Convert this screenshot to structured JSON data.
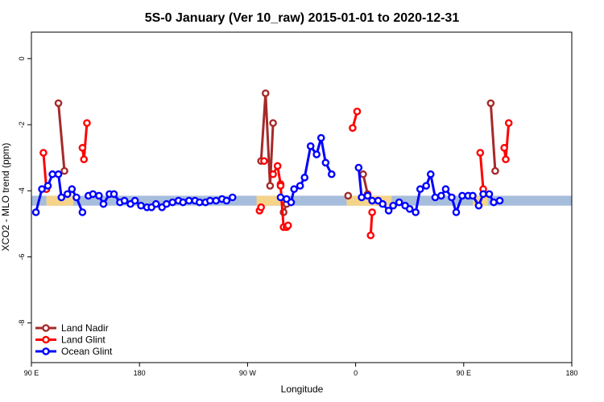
{
  "chart_data": {
    "type": "line",
    "title": "5S-0 January (Ver 10_raw)   2015-01-01 to 2020-12-31",
    "xlabel": "Longitude",
    "ylabel": "XCO2 - MLO trend (ppm)",
    "xlim": [
      90,
      450
    ],
    "ylim": [
      -9.2,
      0.8
    ],
    "x_ticks": [
      {
        "value": 90,
        "label": "90 E"
      },
      {
        "value": 162,
        "label": "180"
      },
      {
        "value": 234,
        "label": "90 W"
      },
      {
        "value": 306,
        "label": "0"
      },
      {
        "value": 378,
        "label": "90 E"
      },
      {
        "value": 450,
        "label": "180"
      }
    ],
    "y_ticks": [
      {
        "value": 0,
        "label": "0"
      },
      {
        "value": -2,
        "label": "-2"
      },
      {
        "value": -4,
        "label": "-4"
      },
      {
        "value": -6,
        "label": "-6"
      },
      {
        "value": -8,
        "label": "-8"
      }
    ],
    "band": {
      "ymin": -4.45,
      "ymax": -4.15,
      "color": "#a7bddc",
      "highlight_color": "#f5d48a",
      "highlight_ranges": [
        [
          100,
          118
        ],
        [
          240,
          262
        ],
        [
          300,
          330
        ],
        [
          384,
          394
        ]
      ]
    },
    "legend_position": "bottom-left",
    "series": [
      {
        "name": "Land Nadir",
        "color": "#a52a2a",
        "segments": [
          [
            [
              108,
              -1.35
            ],
            [
              112,
              -3.4
            ]
          ],
          [
            [
              243,
              -3.1
            ],
            [
              246,
              -1.05
            ],
            [
              249,
              -3.85
            ],
            [
              251,
              -1.95
            ]
          ],
          [
            [
              258,
              -4.65
            ],
            [
              260,
              -4.4
            ]
          ],
          [
            [
              301,
              -4.15
            ]
          ],
          [
            [
              311,
              -3.5
            ],
            [
              314,
              -4.1
            ]
          ],
          [
            [
              396,
              -1.35
            ],
            [
              399,
              -3.4
            ]
          ]
        ]
      },
      {
        "name": "Land Glint",
        "color": "#ff0000",
        "segments": [
          [
            [
              98,
              -2.85
            ],
            [
              100,
              -3.95
            ]
          ],
          [
            [
              124,
              -2.7
            ],
            [
              125,
              -3.05
            ],
            [
              127,
              -1.95
            ]
          ],
          [
            [
              242,
              -4.6
            ],
            [
              243,
              -4.5
            ]
          ],
          [
            [
              245,
              -3.1
            ]
          ],
          [
            [
              251,
              -3.5
            ],
            [
              254,
              -3.25
            ],
            [
              256,
              -3.8
            ],
            [
              256,
              -3.85
            ],
            [
              258,
              -5.1
            ],
            [
              260,
              -5.1
            ],
            [
              261,
              -5.05
            ]
          ],
          [
            [
              304,
              -2.1
            ],
            [
              307,
              -1.6
            ]
          ],
          [
            [
              316,
              -5.35
            ],
            [
              317,
              -4.65
            ]
          ],
          [
            [
              389,
              -2.85
            ],
            [
              391,
              -3.95
            ]
          ],
          [
            [
              405,
              -2.7
            ],
            [
              406,
              -3.05
            ],
            [
              408,
              -1.95
            ]
          ]
        ]
      },
      {
        "name": "Ocean Glint",
        "color": "#0000ff",
        "segments": [
          [
            [
              93,
              -4.65
            ],
            [
              97,
              -3.95
            ],
            [
              101,
              -3.85
            ],
            [
              104,
              -3.5
            ],
            [
              108,
              -3.5
            ],
            [
              110,
              -4.2
            ],
            [
              114,
              -4.1
            ],
            [
              117,
              -3.95
            ],
            [
              120,
              -4.2
            ],
            [
              124,
              -4.65
            ]
          ],
          [
            [
              128,
              -4.15
            ],
            [
              131,
              -4.1
            ],
            [
              135,
              -4.15
            ],
            [
              138,
              -4.4
            ],
            [
              142,
              -4.1
            ],
            [
              145,
              -4.1
            ],
            [
              149,
              -4.35
            ],
            [
              152,
              -4.3
            ],
            [
              156,
              -4.4
            ],
            [
              159,
              -4.3
            ],
            [
              163,
              -4.45
            ],
            [
              167,
              -4.5
            ],
            [
              170,
              -4.5
            ],
            [
              173,
              -4.4
            ],
            [
              177,
              -4.5
            ],
            [
              180,
              -4.4
            ],
            [
              184,
              -4.35
            ],
            [
              188,
              -4.3
            ],
            [
              191,
              -4.35
            ],
            [
              195,
              -4.3
            ],
            [
              199,
              -4.3
            ],
            [
              202,
              -4.35
            ],
            [
              206,
              -4.35
            ],
            [
              209,
              -4.3
            ],
            [
              213,
              -4.3
            ],
            [
              217,
              -4.25
            ],
            [
              220,
              -4.3
            ],
            [
              224,
              -4.2
            ]
          ],
          [
            [
              256,
              -4.2
            ],
            [
              260,
              -4.25
            ],
            [
              263,
              -4.35
            ],
            [
              265,
              -3.95
            ],
            [
              269,
              -3.85
            ],
            [
              272,
              -3.6
            ],
            [
              276,
              -2.65
            ],
            [
              280,
              -2.9
            ],
            [
              283,
              -2.4
            ],
            [
              286,
              -3.15
            ],
            [
              290,
              -3.5
            ]
          ],
          [
            [
              308,
              -3.3
            ],
            [
              310,
              -4.2
            ],
            [
              314,
              -4.15
            ],
            [
              317,
              -4.3
            ],
            [
              321,
              -4.3
            ],
            [
              324,
              -4.4
            ],
            [
              328,
              -4.6
            ],
            [
              331,
              -4.45
            ],
            [
              335,
              -4.35
            ],
            [
              339,
              -4.45
            ],
            [
              342,
              -4.55
            ],
            [
              346,
              -4.65
            ],
            [
              349,
              -3.95
            ],
            [
              353,
              -3.85
            ],
            [
              356,
              -3.5
            ],
            [
              359,
              -4.2
            ],
            [
              363,
              -4.15
            ],
            [
              366,
              -3.95
            ],
            [
              370,
              -4.2
            ],
            [
              373,
              -4.65
            ],
            [
              377,
              -4.15
            ],
            [
              381,
              -4.15
            ],
            [
              384,
              -4.15
            ],
            [
              388,
              -4.45
            ],
            [
              391,
              -4.1
            ],
            [
              395,
              -4.1
            ],
            [
              398,
              -4.35
            ],
            [
              402,
              -4.3
            ]
          ]
        ]
      }
    ]
  }
}
